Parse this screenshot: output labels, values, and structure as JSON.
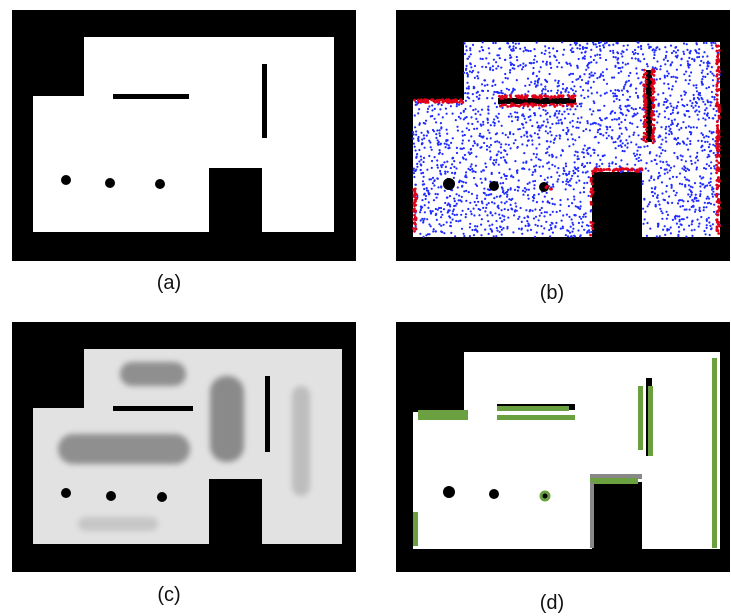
{
  "panels": [
    {
      "id": "a",
      "label": "(a)"
    },
    {
      "id": "b",
      "label": "(b)"
    },
    {
      "id": "c",
      "label": "(c)"
    },
    {
      "id": "d",
      "label": "(d)"
    }
  ],
  "colors": {
    "obstacle": "#000000",
    "free_space": "#ffffff",
    "sample_points": "#1f2bff",
    "boundary_points": "#e0001a",
    "cost_map": "#e2e2e2",
    "estimated_walls": "#6aa040"
  }
}
